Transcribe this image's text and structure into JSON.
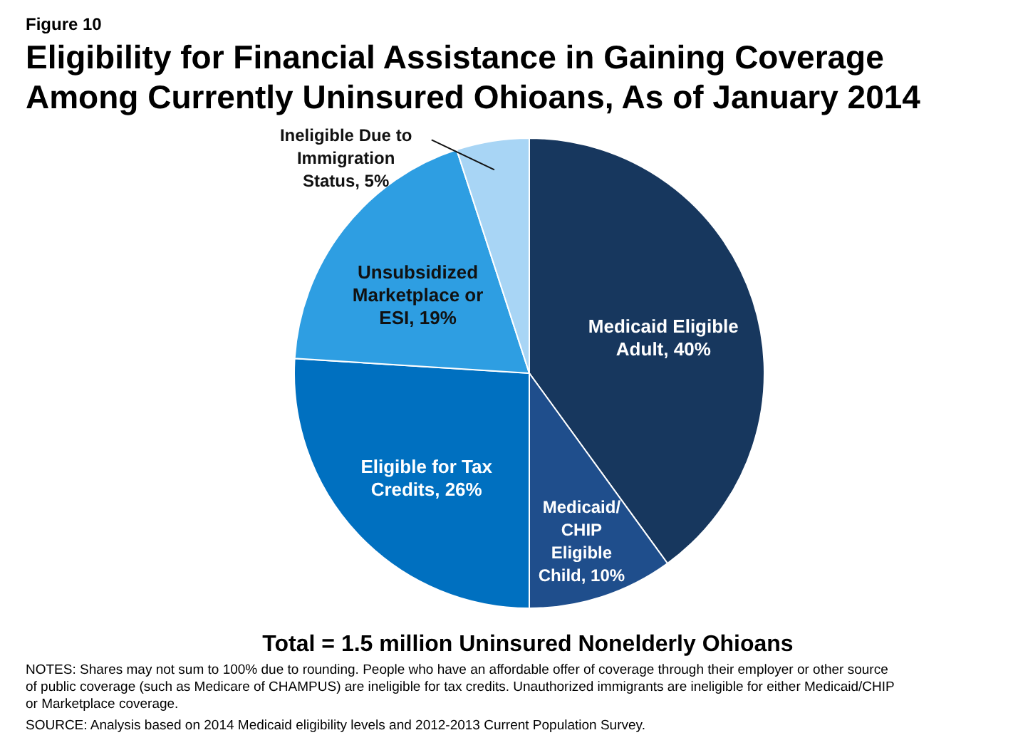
{
  "chart_data": {
    "type": "pie",
    "title": "Eligibility for Financial Assistance in Gaining Coverage Among Currently Uninsured Ohioans, As of January 2014",
    "subtitle": "Figure 10",
    "categories": [
      "Medicaid Eligible Adult",
      "Medicaid/CHIP Eligible Child",
      "Eligible for Tax Credits",
      "Unsubsidized Marketplace or ESI",
      "Ineligible Due to Immigration Status"
    ],
    "values": [
      40,
      10,
      26,
      19,
      5
    ],
    "value_labels": [
      "40%",
      "10%",
      "26%",
      "19%",
      "5%"
    ],
    "colors": [
      "#17375e",
      "#1f4e8c",
      "#0070c0",
      "#2e9ee2",
      "#a8d5f5"
    ],
    "annotations": [
      "Total = 1.5 million Uninsured Nonelderly Ohioans",
      "NOTES: Shares may not sum to 100% due to rounding. People who have an affordable offer of coverage through their employer or other source of public coverage (such as Medicare of CHAMPUS) are ineligible for tax credits. Unauthorized immigrants are ineligible for either Medicaid/CHIP or Marketplace coverage.",
      "SOURCE: Analysis based on 2014 Medicaid eligibility levels and 2012-2013 Current Population Survey."
    ]
  }
}
